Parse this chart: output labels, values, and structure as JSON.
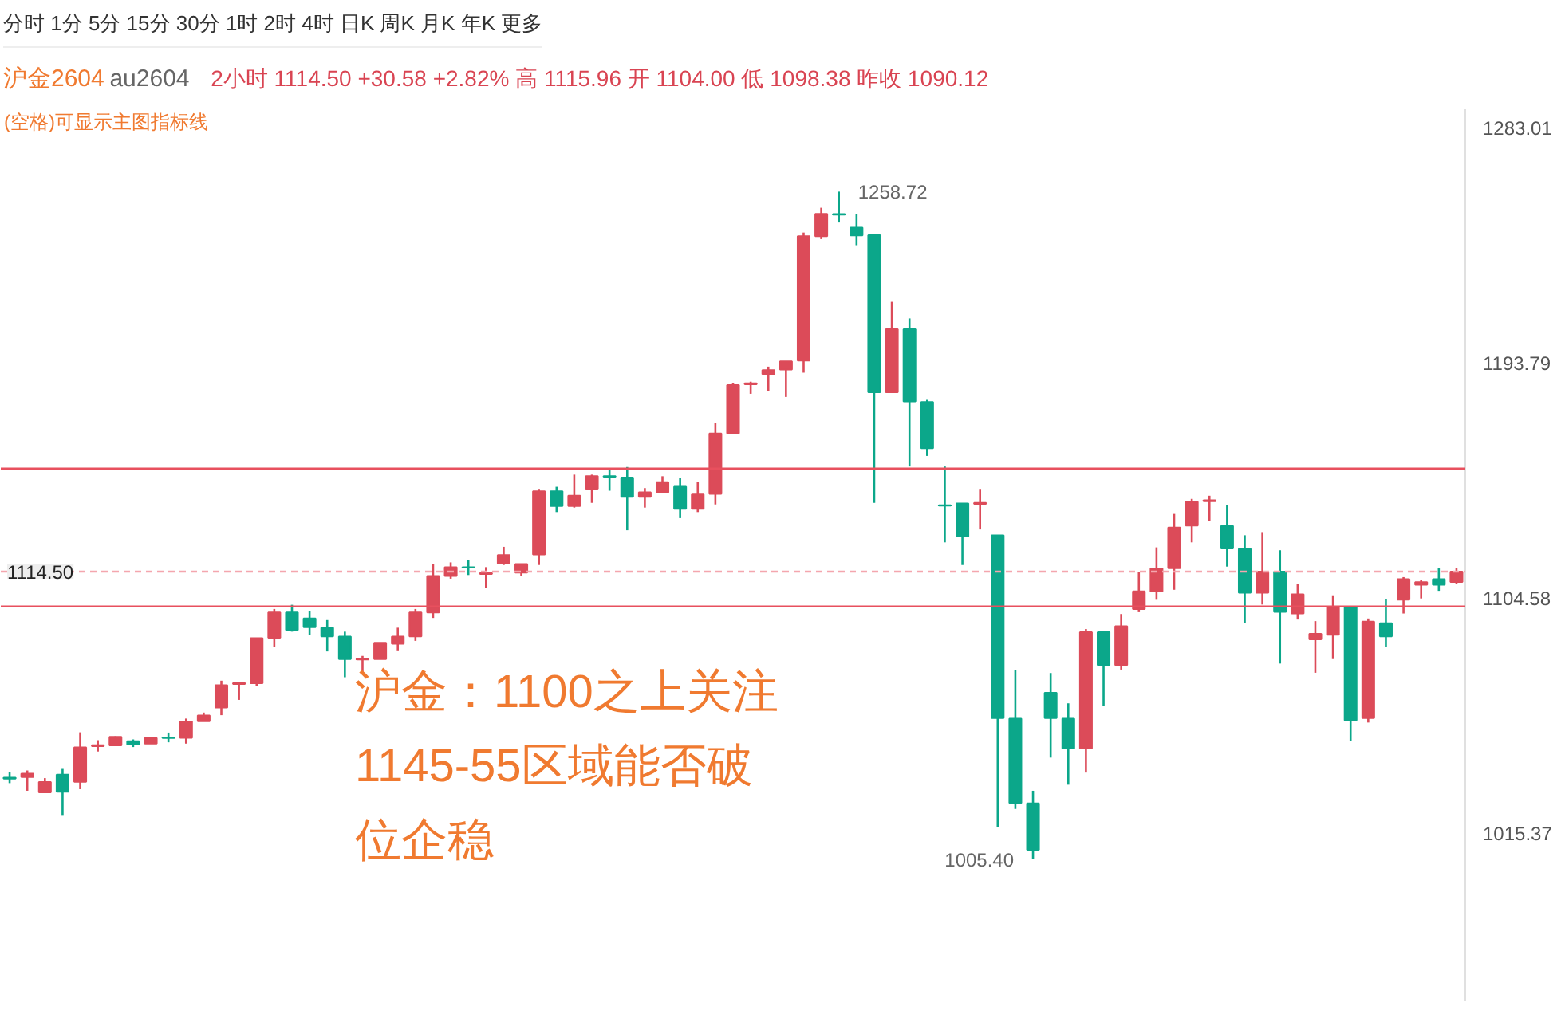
{
  "chart_data": {
    "type": "candlestick",
    "title": "沪金2604",
    "subtitle": "au2604",
    "annotations": [
      "分时 1分 5分 15分 30分 1时 2时 4时 日K 周K 月K 年K 更多",
      "2小时 1114.50 +30.58 +2.82% 高 1115.96 开 1104.00 低 1098.38 昨收 1090.12",
      "(空格)可显示主图指标线",
      "沪金：1100之上关注1145-55区域能否破位企稳",
      "1258.72",
      "1005.40"
    ],
    "categories": [
      null,
      null,
      null,
      null,
      null,
      null,
      null,
      null,
      null,
      null,
      null,
      null,
      null,
      null,
      null,
      null,
      null,
      null,
      null,
      null,
      null,
      null,
      null,
      null,
      null,
      null,
      null,
      null,
      null,
      null,
      null,
      null,
      null,
      null,
      null,
      null,
      null,
      null,
      null,
      null,
      null,
      null,
      null,
      null,
      null,
      null,
      null,
      null,
      null,
      null,
      null,
      null,
      null,
      null,
      null,
      null,
      null,
      null,
      null,
      null,
      null,
      null,
      null,
      null,
      null,
      null,
      null,
      null,
      null,
      null,
      null,
      null,
      null,
      null,
      null,
      null,
      null,
      null,
      null,
      null,
      null,
      null,
      null
    ],
    "ohlc": [
      [
        1036.3,
        1038.4,
        1034.2,
        1035.9
      ],
      [
        1036.5,
        1039.0,
        1031.3,
        1037.8
      ],
      [
        1030.7,
        1036.1,
        1030.4,
        1034.6
      ],
      [
        1037.4,
        1039.6,
        1022.1,
        1030.9
      ],
      [
        1034.7,
        1053.5,
        1031.9,
        1047.8
      ],
      [
        1048.2,
        1050.5,
        1046.2,
        1048.6
      ],
      [
        1048.5,
        1052.0,
        1048.3,
        1051.8
      ],
      [
        1050.1,
        1050.8,
        1047.9,
        1048.9
      ],
      [
        1049.2,
        1051.3,
        1049.2,
        1051.3
      ],
      [
        1051.5,
        1053.4,
        1049.7,
        1051.3
      ],
      [
        1051.4,
        1058.7,
        1049.2,
        1057.6
      ],
      [
        1057.7,
        1061.0,
        1057.7,
        1059.9
      ],
      [
        1062.9,
        1073.1,
        1060.0,
        1071.4
      ],
      [
        1071.8,
        1072.5,
        1065.8,
        1072.2
      ],
      [
        1072.1,
        1089.2,
        1071.0,
        1089.2
      ],
      [
        1089.4,
        1100.3,
        1085.9,
        1099.0
      ],
      [
        1099.0,
        1101.9,
        1091.7,
        1092.3
      ],
      [
        1096.7,
        1099.6,
        1090.5,
        1093.4
      ],
      [
        1093.2,
        1096.1,
        1084.2,
        1089.9
      ],
      [
        1089.8,
        1091.7,
        1074.4,
        1081.3
      ],
      [
        1081.1,
        1082.5,
        1075.6,
        1081.5
      ],
      [
        1081.3,
        1087.5,
        1081.3,
        1087.5
      ],
      [
        1087.1,
        1093.2,
        1084.6,
        1089.8
      ],
      [
        1089.9,
        1100.3,
        1088.2,
        1099.0
      ],
      [
        1099.0,
        1117.4,
        1096.9,
        1112.8
      ],
      [
        1112.8,
        1118.0,
        1111.8,
        1116.2
      ],
      [
        1116.2,
        1118.9,
        1113.2,
        1116.0
      ],
      [
        1113.6,
        1116.2,
        1108.4,
        1114.0
      ],
      [
        1117.6,
        1123.9,
        1117.0,
        1120.8
      ],
      [
        1114.1,
        1117.4,
        1112.9,
        1117.4
      ],
      [
        1121.0,
        1145.6,
        1117.0,
        1145.0
      ],
      [
        1145.0,
        1146.7,
        1137.1,
        1139.4
      ],
      [
        1139.4,
        1151.3,
        1138.8,
        1143.3
      ],
      [
        1145.7,
        1151.3,
        1140.6,
        1150.7
      ],
      [
        1150.7,
        1153.0,
        1145.2,
        1150.5
      ],
      [
        1150.2,
        1154.2,
        1130.2,
        1142.9
      ],
      [
        1142.9,
        1146.2,
        1138.8,
        1144.6
      ],
      [
        1144.6,
        1150.7,
        1144.6,
        1148.5
      ],
      [
        1146.7,
        1150.2,
        1134.8,
        1138.3
      ],
      [
        1138.3,
        1148.5,
        1137.1,
        1143.8
      ],
      [
        1144.0,
        1170.9,
        1140.0,
        1166.9
      ],
      [
        1167.0,
        1186.0,
        1167.0,
        1185.3
      ],
      [
        1185.6,
        1186.6,
        1182.0,
        1186.0
      ],
      [
        1189.5,
        1192.3,
        1183.1,
        1191.0
      ],
      [
        1191.2,
        1194.3,
        1180.8,
        1194.3
      ],
      [
        1194.6,
        1243.2,
        1190.0,
        1241.8
      ],
      [
        1241.8,
        1252.6,
        1240.7,
        1250.3
      ],
      [
        1250.2,
        1258.72,
        1247.0,
        1250.0
      ],
      [
        1245.1,
        1250.1,
        1238.4,
        1242.1
      ],
      [
        1242.2,
        1242.2,
        1140.6,
        1182.6
      ],
      [
        1182.6,
        1216.9,
        1182.6,
        1206.5
      ],
      [
        1206.5,
        1210.6,
        1154.4,
        1179.1
      ],
      [
        1178.9,
        1179.7,
        1158.4,
        1161.3
      ],
      [
        1139.7,
        1154.4,
        1125.6,
        1139.5
      ],
      [
        1140.4,
        1140.4,
        1117.0,
        1127.9
      ],
      [
        1140.2,
        1145.6,
        1130.5,
        1140.6
      ],
      [
        1128.3,
        1128.3,
        1017.5,
        1058.9
      ],
      [
        1058.7,
        1077.1,
        1024.4,
        1026.7
      ],
      [
        1026.5,
        1031.3,
        1005.4,
        1008.9
      ],
      [
        1068.5,
        1076.0,
        1043.9,
        1058.9
      ],
      [
        1058.7,
        1064.5,
        1033.6,
        1047.4
      ],
      [
        1047.4,
        1092.7,
        1038.2,
        1091.5
      ],
      [
        1091.5,
        1091.5,
        1063.5,
        1079.0
      ],
      [
        1079.0,
        1098.4,
        1077.3,
        1093.8
      ],
      [
        1100.3,
        1114.3,
        1099.1,
        1107.0
      ],
      [
        1107.0,
        1123.7,
        1103.8,
        1115.6
      ],
      [
        1115.8,
        1136.4,
        1107.6,
        1131.2
      ],
      [
        1132.0,
        1142.1,
        1125.6,
        1141.0
      ],
      [
        1141.2,
        1143.3,
        1133.7,
        1141.6
      ],
      [
        1131.8,
        1139.8,
        1116.4,
        1123.3
      ],
      [
        1123.1,
        1128.3,
        1095.1,
        1106.5
      ],
      [
        1106.5,
        1129.5,
        1102.0,
        1114.5
      ],
      [
        1114.5,
        1122.6,
        1079.6,
        1099.2
      ],
      [
        1098.6,
        1109.9,
        1096.3,
        1105.9
      ],
      [
        1088.8,
        1095.7,
        1076.1,
        1090.9
      ],
      [
        1090.5,
        1105.5,
        1081.3,
        1100.9
      ],
      [
        1100.9,
        1100.9,
        1050.3,
        1058.1
      ],
      [
        1058.9,
        1096.7,
        1057.2,
        1095.5
      ],
      [
        1094.9,
        1104.2,
        1085.9,
        1089.9
      ],
      [
        1103.8,
        1112.4,
        1098.6,
        1111.6
      ],
      [
        1109.5,
        1111.2,
        1104.3,
        1110.5
      ],
      [
        1111.6,
        1115.7,
        1107.2,
        1109.5
      ],
      [
        1110.6,
        1115.96,
        1109.8,
        1114.5
      ]
    ],
    "colors": [
      "#0ba78a",
      "#dc4b59",
      "#dc4b59",
      "#0ba78a",
      "#dc4b59",
      "#dc4b59",
      "#dc4b59",
      "#0ba78a",
      "#dc4b59",
      "#0ba78a",
      "#dc4b59",
      "#dc4b59",
      "#dc4b59",
      "#dc4b59",
      "#dc4b59",
      "#dc4b59",
      "#0ba78a",
      "#0ba78a",
      "#0ba78a",
      "#0ba78a",
      "#dc4b59",
      "#dc4b59",
      "#dc4b59",
      "#dc4b59",
      "#dc4b59",
      "#dc4b59",
      "#0ba78a",
      "#dc4b59",
      "#dc4b59",
      "#dc4b59",
      "#dc4b59",
      "#0ba78a",
      "#dc4b59",
      "#dc4b59",
      "#0ba78a",
      "#0ba78a",
      "#dc4b59",
      "#dc4b59",
      "#0ba78a",
      "#dc4b59",
      "#dc4b59",
      "#dc4b59",
      "#dc4b59",
      "#dc4b59",
      "#dc4b59",
      "#dc4b59",
      "#dc4b59",
      "#0ba78a",
      "#0ba78a",
      "#0ba78a",
      "#dc4b59",
      "#0ba78a",
      "#0ba78a",
      "#0ba78a",
      "#0ba78a",
      "#dc4b59",
      "#0ba78a",
      "#0ba78a",
      "#0ba78a",
      "#0ba78a",
      "#0ba78a",
      "#dc4b59",
      "#0ba78a",
      "#dc4b59",
      "#dc4b59",
      "#dc4b59",
      "#dc4b59",
      "#dc4b59",
      "#dc4b59",
      "#0ba78a",
      "#0ba78a",
      "#dc4b59",
      "#0ba78a",
      "#dc4b59",
      "#dc4b59",
      "#dc4b59",
      "#0ba78a",
      "#dc4b59",
      "#0ba78a",
      "#dc4b59",
      "#dc4b59",
      "#0ba78a",
      "#dc4b59"
    ],
    "ylim": [
      951.1,
      1290.0
    ],
    "yticks": [
      1015.37,
      1104.58,
      1193.79,
      1283.01
    ],
    "ref_lines": [
      {
        "axis": "y",
        "value": 1153.6,
        "color": "#e8505e"
      },
      {
        "axis": "y",
        "value": 1101.3,
        "color": "#e8505e"
      },
      {
        "axis": "y",
        "value": 1114.5,
        "label": "1114.50",
        "color": "#f4a6ae",
        "line_style": "dashed"
      }
    ],
    "tick_labels": "y",
    "grid": false
  }
}
